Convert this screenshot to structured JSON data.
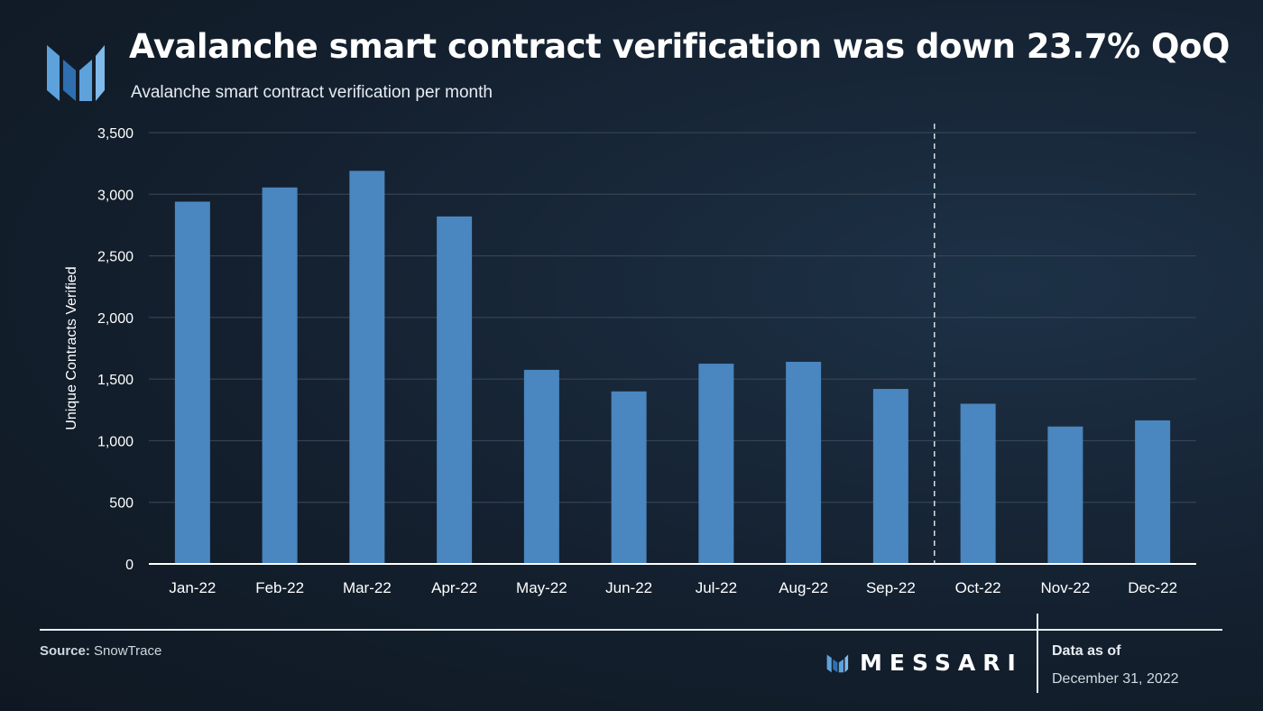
{
  "header": {
    "title": "Avalanche smart contract verification was down 23.7% QoQ",
    "subtitle": "Avalanche smart contract verification per month"
  },
  "footer": {
    "source_label": "Source:",
    "source_value": "SnowTrace",
    "brand": "MESSARI",
    "as_of_label": "Data as of",
    "as_of_date": "December 31, 2022"
  },
  "colors": {
    "bar": "#4a86bf",
    "grid": "#3a4a5a",
    "axis": "#ffffff",
    "background": "#14202f"
  },
  "chart_data": {
    "type": "bar",
    "categories": [
      "Jan-22",
      "Feb-22",
      "Mar-22",
      "Apr-22",
      "May-22",
      "Jun-22",
      "Jul-22",
      "Aug-22",
      "Sep-22",
      "Oct-22",
      "Nov-22",
      "Dec-22"
    ],
    "values": [
      2940,
      3055,
      3190,
      2820,
      1575,
      1400,
      1625,
      1640,
      1420,
      1300,
      1115,
      1165
    ],
    "ylabel": "Unique Contracts Verified",
    "xlabel": "",
    "ylim": [
      0,
      3500
    ],
    "yticks": [
      0,
      500,
      1000,
      1500,
      2000,
      2500,
      3000,
      3500
    ],
    "ytick_labels": [
      "0",
      "500",
      "1,000",
      "1,500",
      "2,000",
      "2,500",
      "3,000",
      "3,500"
    ],
    "grid": true,
    "divider_after_category": "Sep-22"
  }
}
